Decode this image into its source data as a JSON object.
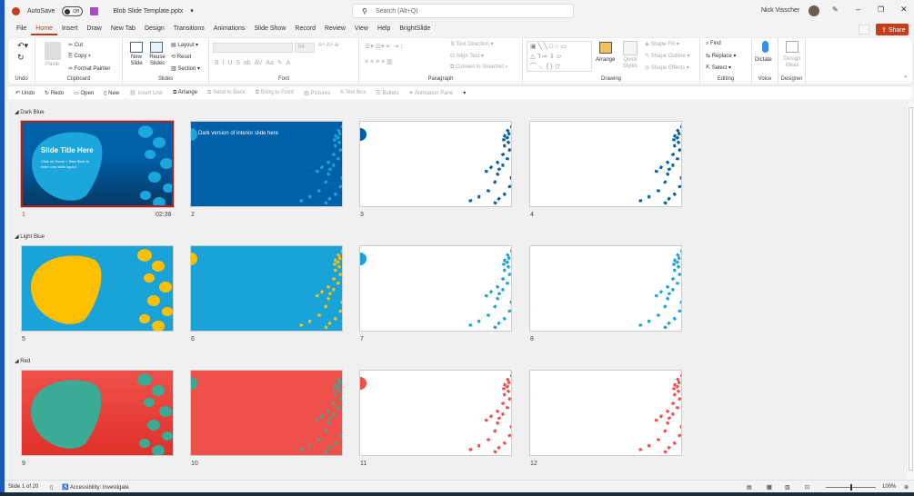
{
  "titlebar": {
    "autosave": "AutoSave",
    "autosave_state": "Off",
    "filename": "Blob Slide Template.pptx",
    "search_placeholder": "Search (Alt+Q)",
    "user": "Nick Visscher",
    "share": "Share"
  },
  "tabs": [
    "File",
    "Home",
    "Insert",
    "Draw",
    "New Tab",
    "Design",
    "Transitions",
    "Animations",
    "Slide Show",
    "Record",
    "Review",
    "View",
    "Help",
    "BrightSlide"
  ],
  "active_tab": "Home",
  "ribbon": {
    "undo_group": "Undo",
    "clipboard_group": "Clipboard",
    "paste": "Paste",
    "cut": "Cut",
    "copy": "Copy",
    "format_painter": "Format Painter",
    "slides_group": "Slides",
    "new_slide": "New Slide",
    "reuse_slides": "Reuse Slides",
    "layout": "Layout",
    "reset": "Reset",
    "section": "Section",
    "font_group": "Font",
    "font_size": "54",
    "paragraph_group": "Paragraph",
    "text_direction": "Text Direction",
    "align_text": "Align Text",
    "convert_smartart": "Convert to SmartArt",
    "drawing_group": "Drawing",
    "arrange": "Arrange",
    "quick_styles": "Quick Styles",
    "shape_fill": "Shape Fill",
    "shape_outline": "Shape Outline",
    "shape_effects": "Shape Effects",
    "editing_group": "Editing",
    "find": "Find",
    "replace": "Replace",
    "select": "Select",
    "voice_group": "Voice",
    "dictate": "Dictate",
    "designer_group": "Designer",
    "design_ideas": "Design Ideas"
  },
  "qat": [
    "Undo",
    "Redo",
    "Open",
    "New",
    "Insert Link",
    "Arrange",
    "Send to Back",
    "Bring to Front",
    "Pictures",
    "Text Box",
    "Bullets",
    "Animation Pane"
  ],
  "sections": [
    {
      "name": "Dark Blue",
      "accent": "#0060a8",
      "light": "#1ba6dc",
      "slides": [
        {
          "number": "1",
          "kind": "title",
          "title": "Slide Title Here",
          "subtitle": "Click on Home > New Slide to enter new slide layout.",
          "timing": "02:38",
          "selected": true
        },
        {
          "number": "2",
          "kind": "interior",
          "title": "Dark version of interior slide here"
        },
        {
          "number": "3",
          "kind": "white"
        },
        {
          "number": "4",
          "kind": "white2"
        }
      ]
    },
    {
      "name": "Light Blue",
      "accent": "#1aa3d8",
      "light": "#ffc000",
      "slides": [
        {
          "number": "5",
          "kind": "title"
        },
        {
          "number": "6",
          "kind": "interior"
        },
        {
          "number": "7",
          "kind": "white"
        },
        {
          "number": "8",
          "kind": "white2"
        }
      ]
    },
    {
      "name": "Red",
      "accent": "#f0504a",
      "light": "#3aab94",
      "slides": [
        {
          "number": "9",
          "kind": "title"
        },
        {
          "number": "10",
          "kind": "interior"
        },
        {
          "number": "11",
          "kind": "white"
        },
        {
          "number": "12",
          "kind": "white2"
        }
      ]
    }
  ],
  "status": {
    "slide_info": "Slide 1 of 20",
    "accessibility": "Accessibility: Investigate",
    "zoom": "100%"
  }
}
